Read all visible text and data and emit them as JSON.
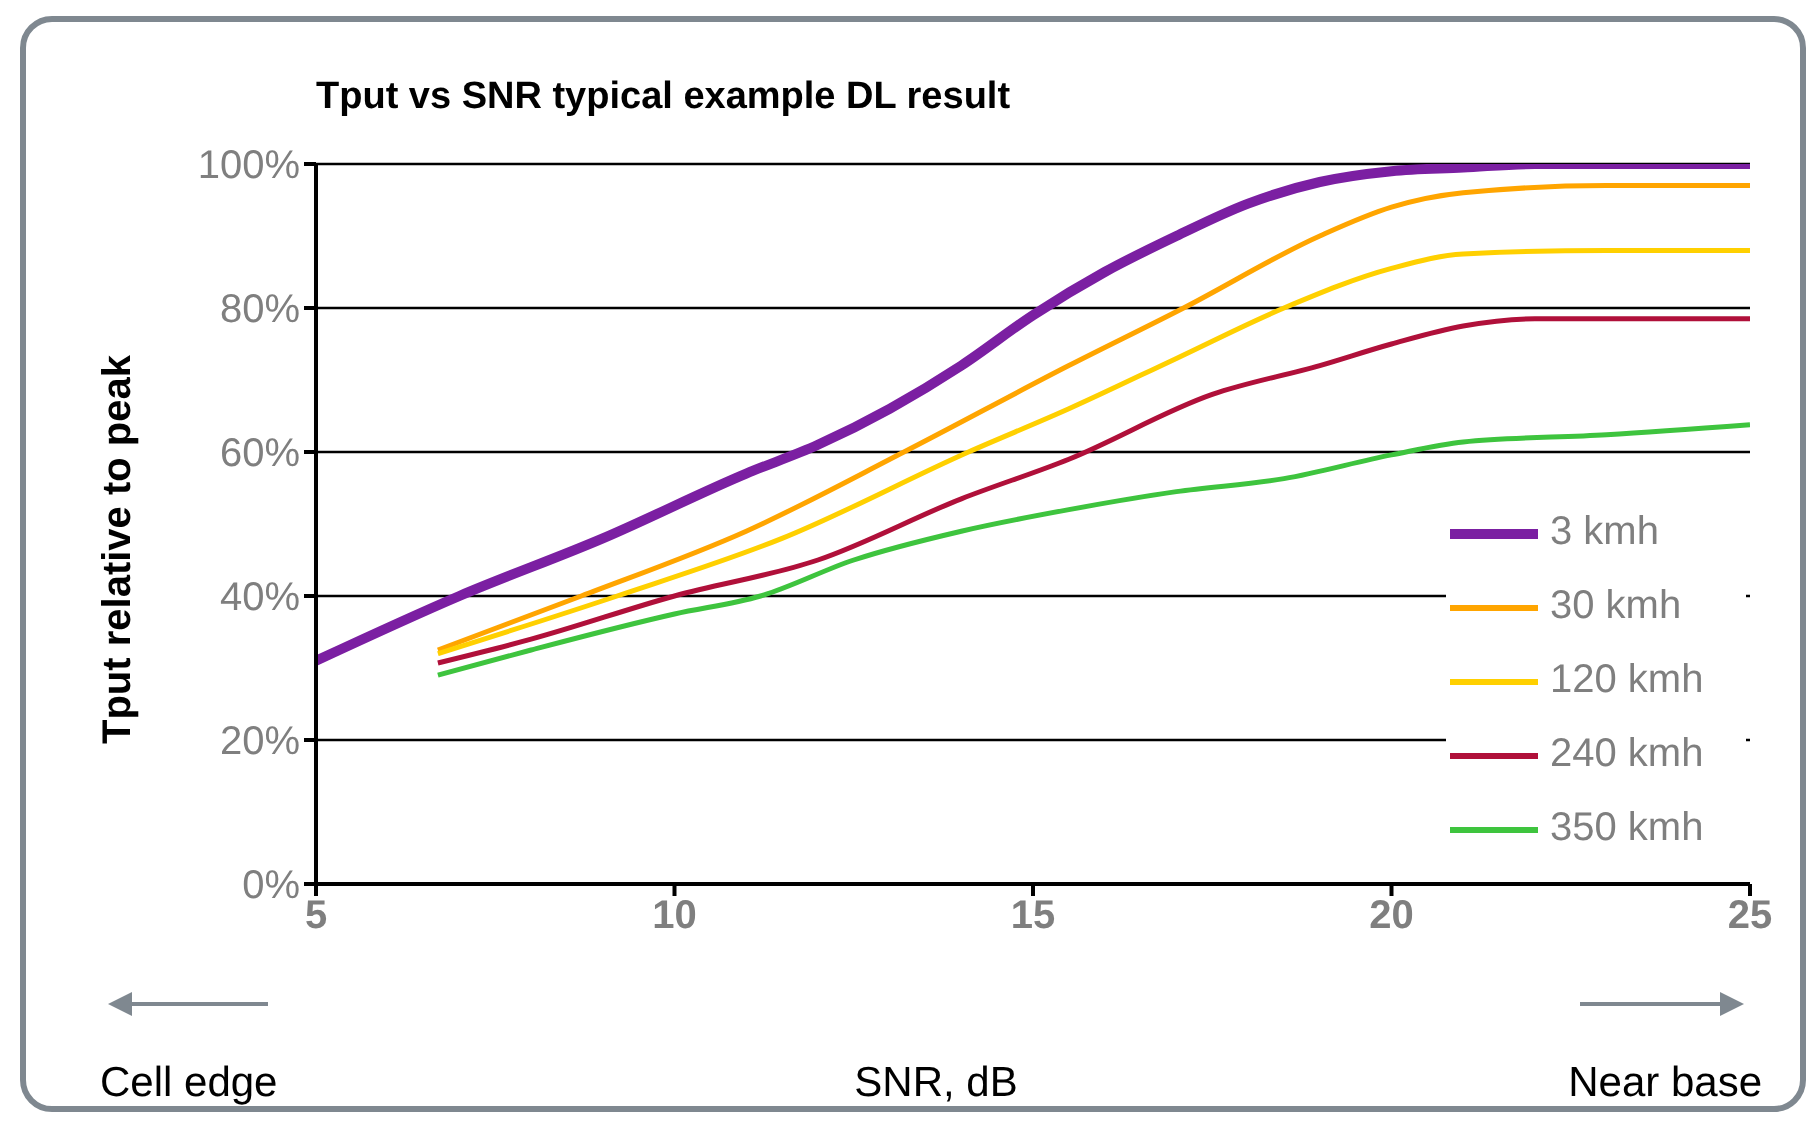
{
  "chart_data": {
    "type": "line",
    "title": "Tput vs SNR typical example DL result",
    "xlabel": "SNR, dB",
    "ylabel": "Tput relative to peak",
    "annotations": [
      "Cell edge",
      "Near base"
    ],
    "xlim": [
      5,
      25
    ],
    "xticks": [
      5,
      10,
      15,
      20,
      25
    ],
    "ylim": [
      0,
      100
    ],
    "yticks": [
      {
        "value": 0,
        "label": "0%"
      },
      {
        "value": 20,
        "label": "20%"
      },
      {
        "value": 40,
        "label": "40%"
      },
      {
        "value": 60,
        "label": "60%"
      },
      {
        "value": 80,
        "label": "80%"
      },
      {
        "value": 100,
        "label": "100%"
      }
    ],
    "grid": "y",
    "legend": "right",
    "marker": "none",
    "line_style": "solid",
    "series": [
      {
        "name": "3 kmh",
        "color": "#7b1fa2",
        "x": [
          5,
          7,
          9,
          11,
          12,
          13,
          14,
          15,
          16,
          17,
          18,
          19,
          20,
          21,
          22,
          25
        ],
        "values": [
          31,
          40,
          48,
          57,
          61,
          66,
          72,
          79,
          85,
          90,
          94.5,
          97.5,
          99,
          99.5,
          100,
          100
        ]
      },
      {
        "name": "30 kmh",
        "color": "#ffa500",
        "x": [
          6.7,
          8.7,
          11,
          13.2,
          15.5,
          17.1,
          19,
          20,
          21,
          23,
          25
        ],
        "values": [
          32.5,
          40,
          49,
          60,
          72,
          80,
          90,
          94,
          96,
          97,
          97
        ]
      },
      {
        "name": "120 kmh",
        "color": "#ffd000",
        "x": [
          6.7,
          9.2,
          11.5,
          14.1,
          15.5,
          17,
          18.5,
          20,
          21,
          23,
          25
        ],
        "values": [
          32,
          40,
          48,
          60,
          66,
          73,
          80,
          85.5,
          87.5,
          88,
          88
        ]
      },
      {
        "name": "240 kmh",
        "color": "#b0103a",
        "x": [
          6.7,
          8,
          10,
          12,
          14,
          15.5,
          17.5,
          19,
          20,
          21,
          22,
          25
        ],
        "values": [
          30.7,
          34,
          40,
          45,
          53.5,
          59,
          68,
          72,
          75,
          77.5,
          78.5,
          78.5
        ]
      },
      {
        "name": "350 kmh",
        "color": "#3ec43e",
        "x": [
          6.7,
          8,
          10,
          11.2,
          12.5,
          14,
          15.5,
          17,
          18.5,
          20,
          21,
          23,
          25
        ],
        "values": [
          29,
          32.5,
          37.5,
          40,
          45,
          49,
          52,
          54.5,
          56.3,
          59.6,
          61.4,
          62.4,
          63.8
        ]
      }
    ]
  }
}
